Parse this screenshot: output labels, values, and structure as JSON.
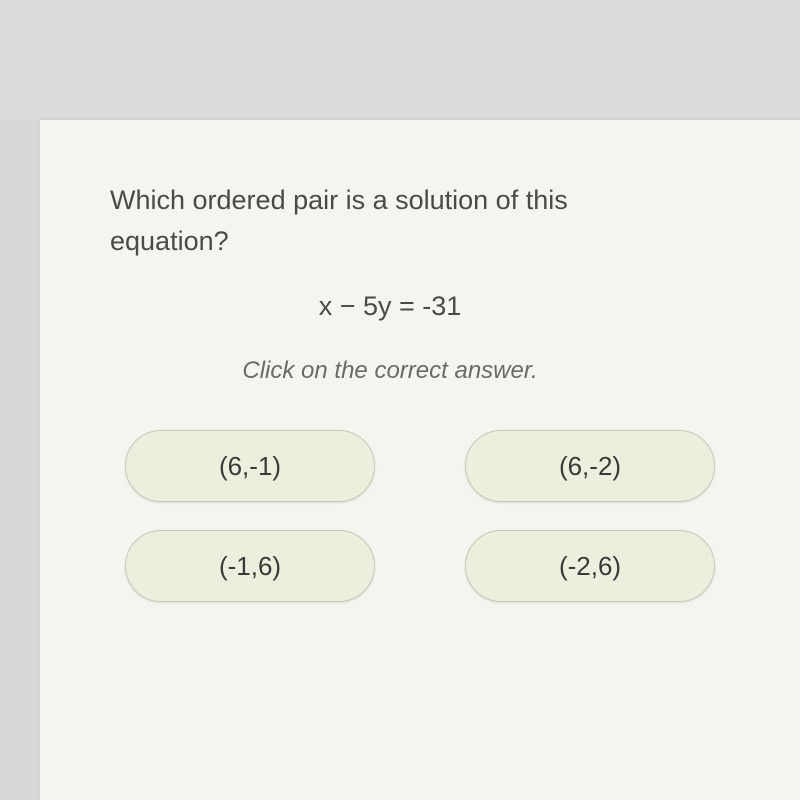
{
  "question": {
    "prompt_line1": "Which ordered pair is a solution of this",
    "prompt_line2": "equation?",
    "equation": "x − 5y = -31",
    "instruction": "Click on the correct answer."
  },
  "answers": [
    {
      "label": "(6,-1)"
    },
    {
      "label": "(6,-2)"
    },
    {
      "label": "(-1,6)"
    },
    {
      "label": "(-2,6)"
    }
  ],
  "styling": {
    "page_background": "#d8d8d8",
    "card_background": "#f5f5f0",
    "button_background": "#eeeede",
    "button_border": "#c8c8b8",
    "text_color": "#4a4a48",
    "instruction_color": "#6a6a66",
    "question_fontsize": 27,
    "equation_fontsize": 27,
    "instruction_fontsize": 24,
    "answer_fontsize": 26,
    "button_radius": 40
  }
}
